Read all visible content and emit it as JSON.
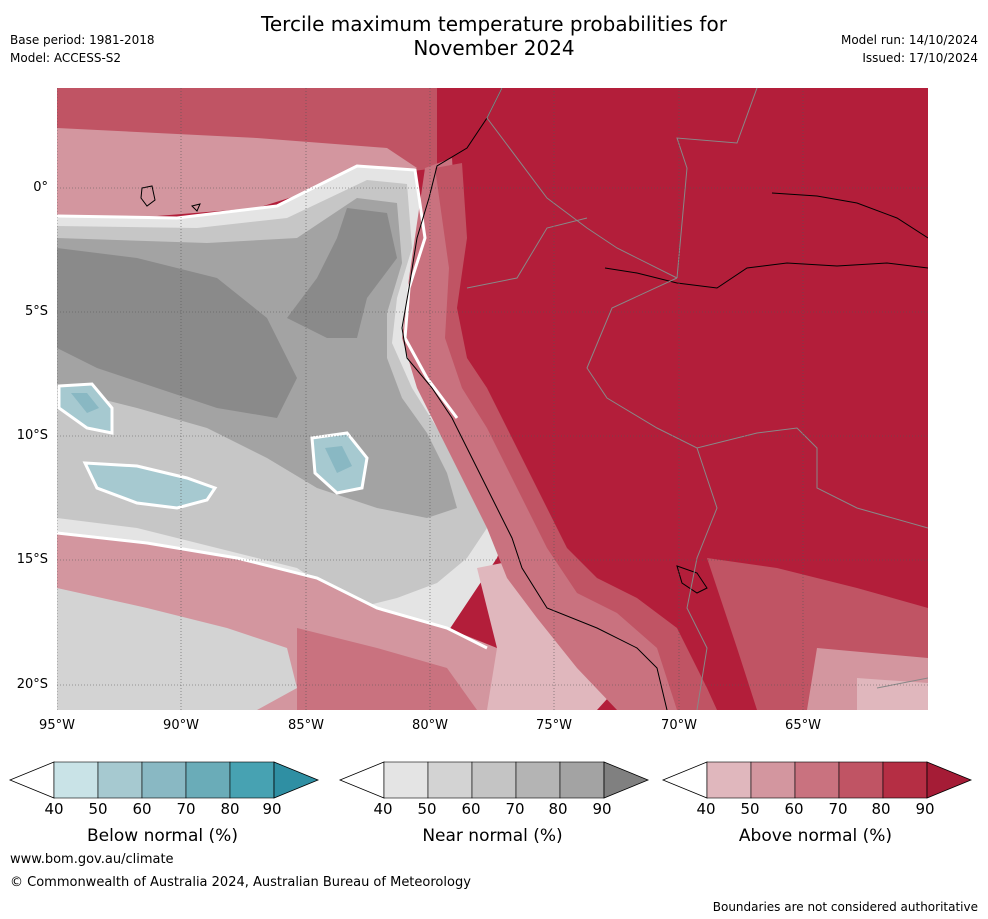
{
  "header": {
    "title_line1": "Tercile maximum temperature probabilities for",
    "title_line2": "November 2024",
    "base_period": "Base period: 1981-2018",
    "model": "Model: ACCESS-S2",
    "model_run": "Model run: 14/10/2024",
    "issued": "Issued: 17/10/2024"
  },
  "map": {
    "lat_labels": [
      "0°",
      "5°S",
      "10°S",
      "15°S",
      "20°S"
    ],
    "lon_labels": [
      "95°W",
      "90°W",
      "85°W",
      "80°W",
      "75°W",
      "70°W",
      "65°W"
    ],
    "colors": {
      "ocean_grey_light": "#e4e4e4",
      "ocean_grey_mid": "#c6c6c6",
      "ocean_grey_dark": "#8a8a8a",
      "land_red": "#b31e3a",
      "red_light": "#e0b7bd",
      "blue_mid": "#a6c9d0"
    }
  },
  "colorbars": [
    {
      "label": "Below normal (%)",
      "ticks": [
        "40",
        "50",
        "60",
        "70",
        "80",
        "90"
      ],
      "colors": [
        "#ffffff",
        "#c9e3e7",
        "#a6c9d0",
        "#89b8c3",
        "#6aacb8",
        "#47a2b2",
        "#2f8fa3"
      ]
    },
    {
      "label": "Near normal (%)",
      "ticks": [
        "40",
        "50",
        "60",
        "70",
        "80",
        "90"
      ],
      "colors": [
        "#ffffff",
        "#e4e4e4",
        "#d3d3d3",
        "#c4c4c4",
        "#b4b4b4",
        "#a3a3a3",
        "#808080"
      ]
    },
    {
      "label": "Above normal (%)",
      "ticks": [
        "40",
        "50",
        "60",
        "70",
        "80",
        "90"
      ],
      "colors": [
        "#ffffff",
        "#e0b7bd",
        "#d3969f",
        "#c9727f",
        "#c05464",
        "#b52e44",
        "#a51c36"
      ]
    }
  ],
  "footer": {
    "website": "www.bom.gov.au/climate",
    "copyright": "© Commonwealth of Australia 2024, Australian Bureau of Meteorology",
    "disclaimer": "Boundaries are not considered authoritative"
  }
}
